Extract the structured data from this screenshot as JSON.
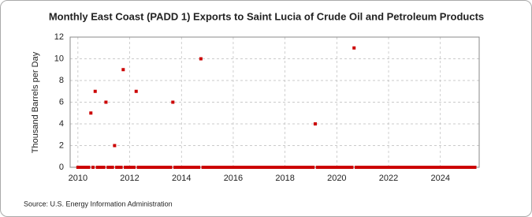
{
  "chart_data": {
    "type": "scatter",
    "title": "Monthly East Coast (PADD 1) Exports to Saint Lucia of Crude Oil and Petroleum Products",
    "y_label": "Thousand Barrels per Day",
    "source": "Source: U.S. Energy Information Administration",
    "color": "#cc0000",
    "grid": true,
    "xlim": [
      2009.7,
      2025.5
    ],
    "ylim": [
      0,
      12
    ],
    "xticks": [
      2010,
      2012,
      2014,
      2016,
      2018,
      2020,
      2022,
      2024
    ],
    "yticks": [
      0,
      2,
      4,
      6,
      8,
      10,
      12
    ],
    "x": [
      2010,
      2010.083,
      2010.167,
      2010.25,
      2010.333,
      2010.417,
      2010.5,
      2010.583,
      2010.667,
      2010.75,
      2010.833,
      2010.917,
      2011,
      2011.083,
      2011.167,
      2011.25,
      2011.333,
      2011.417,
      2011.5,
      2011.583,
      2011.667,
      2011.75,
      2011.833,
      2011.917,
      2012,
      2012.083,
      2012.167,
      2012.25,
      2012.333,
      2012.417,
      2012.5,
      2012.583,
      2012.667,
      2012.75,
      2012.833,
      2012.917,
      2013,
      2013.083,
      2013.167,
      2013.25,
      2013.333,
      2013.417,
      2013.5,
      2013.583,
      2013.667,
      2013.75,
      2013.833,
      2013.917,
      2014,
      2014.083,
      2014.167,
      2014.25,
      2014.333,
      2014.417,
      2014.5,
      2014.583,
      2014.667,
      2014.75,
      2014.833,
      2014.917,
      2015,
      2015.083,
      2015.167,
      2015.25,
      2015.333,
      2015.417,
      2015.5,
      2015.583,
      2015.667,
      2015.75,
      2015.833,
      2015.917,
      2016,
      2016.083,
      2016.167,
      2016.25,
      2016.333,
      2016.417,
      2016.5,
      2016.583,
      2016.667,
      2016.75,
      2016.833,
      2016.917,
      2017,
      2017.083,
      2017.167,
      2017.25,
      2017.333,
      2017.417,
      2017.5,
      2017.583,
      2017.667,
      2017.75,
      2017.833,
      2017.917,
      2018,
      2018.083,
      2018.167,
      2018.25,
      2018.333,
      2018.417,
      2018.5,
      2018.583,
      2018.667,
      2018.75,
      2018.833,
      2018.917,
      2019,
      2019.083,
      2019.167,
      2019.25,
      2019.333,
      2019.417,
      2019.5,
      2019.583,
      2019.667,
      2019.75,
      2019.833,
      2019.917,
      2020,
      2020.083,
      2020.167,
      2020.25,
      2020.333,
      2020.417,
      2020.5,
      2020.583,
      2020.667,
      2020.75,
      2020.833,
      2020.917,
      2021,
      2021.083,
      2021.167,
      2021.25,
      2021.333,
      2021.417,
      2021.5,
      2021.583,
      2021.667,
      2021.75,
      2021.833,
      2021.917,
      2022,
      2022.083,
      2022.167,
      2022.25,
      2022.333,
      2022.417,
      2022.5,
      2022.583,
      2022.667,
      2022.75,
      2022.833,
      2022.917,
      2023,
      2023.083,
      2023.167,
      2023.25,
      2023.333,
      2023.417,
      2023.5,
      2023.583,
      2023.667,
      2023.75,
      2023.833,
      2023.917,
      2024,
      2024.083,
      2024.167,
      2024.25,
      2024.333,
      2024.417,
      2024.5,
      2024.583,
      2024.667,
      2024.75,
      2024.833,
      2024.917,
      2025,
      2025.083,
      2025.167,
      2025.25,
      2025.333
    ],
    "values": [
      0,
      0,
      0,
      0,
      0,
      0,
      5,
      0,
      7,
      0,
      0,
      0,
      0,
      6,
      0,
      0,
      0,
      2,
      0,
      0,
      0,
      9,
      0,
      0,
      0,
      0,
      0,
      7,
      0,
      0,
      0,
      0,
      0,
      0,
      0,
      0,
      0,
      0,
      0,
      0,
      0,
      0,
      0,
      0,
      6,
      0,
      0,
      0,
      0,
      0,
      0,
      0,
      0,
      0,
      0,
      0,
      0,
      10,
      0,
      0,
      0,
      0,
      0,
      0,
      0,
      0,
      0,
      0,
      0,
      0,
      0,
      0,
      0,
      0,
      0,
      0,
      0,
      0,
      0,
      0,
      0,
      0,
      0,
      0,
      0,
      0,
      0,
      0,
      0,
      0,
      0,
      0,
      0,
      0,
      0,
      0,
      0,
      0,
      0,
      0,
      0,
      0,
      0,
      0,
      0,
      0,
      0,
      0,
      0,
      0,
      4,
      0,
      0,
      0,
      0,
      0,
      0,
      0,
      0,
      0,
      0,
      0,
      0,
      0,
      0,
      0,
      0,
      0,
      11,
      0,
      0,
      0,
      0,
      0,
      0,
      0,
      0,
      0,
      0,
      0,
      0,
      0,
      0,
      0,
      0,
      0,
      0,
      0,
      0,
      0,
      0,
      0,
      0,
      0,
      0,
      0,
      0,
      0,
      0,
      0,
      0,
      0,
      0,
      0,
      0,
      0,
      0,
      0,
      0,
      0,
      0,
      0,
      0,
      0,
      0,
      0,
      0,
      0,
      0,
      0,
      0,
      0,
      0,
      0,
      0
    ]
  }
}
